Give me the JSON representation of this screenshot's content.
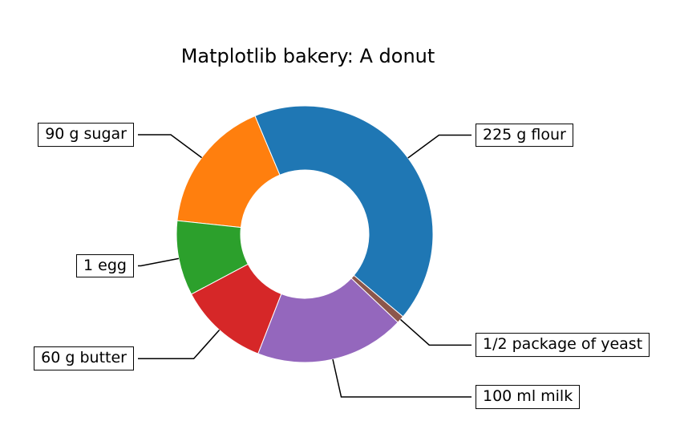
{
  "title": "Matplotlib bakery: A donut",
  "chart_data": {
    "type": "pie",
    "subtype": "donut",
    "title": "Matplotlib bakery: A donut",
    "labels": [
      "225 g flour",
      "90 g sugar",
      "1 egg",
      "60 g butter",
      "100 ml milk",
      "1/2 package of yeast"
    ],
    "values": [
      225,
      90,
      50,
      60,
      100,
      5
    ],
    "colors": [
      "#1f77b4",
      "#ff7f0e",
      "#2ca02c",
      "#d62728",
      "#9467bd",
      "#8c564b"
    ],
    "start_angle": -40,
    "direction": "counterclockwise",
    "donut_width_ratio": 0.5,
    "legend": "none",
    "annotation_style": "boxed labels connected to wedges with black elbow lines",
    "background_color": "#ffffff",
    "line_color": "#000000"
  }
}
